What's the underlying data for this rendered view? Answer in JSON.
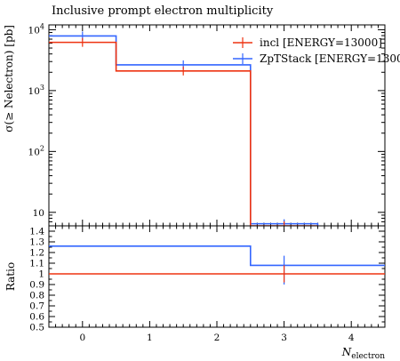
{
  "chart_data": {
    "type": "line",
    "title": "Inclusive prompt electron multiplicity",
    "xlabel": "N_electron",
    "ylabel": "σ(≥ N_electron) [pb]",
    "x_ticks": [
      "0",
      "1",
      "2",
      "3",
      "4"
    ],
    "xlim": [
      -0.5,
      4.5
    ],
    "main_panel": {
      "yscale": "log",
      "ylim": [
        6,
        12000
      ],
      "y_ticks": [
        {
          "value": 10,
          "base": "10",
          "exp": ""
        },
        {
          "value": 100,
          "base": "10",
          "exp": "2"
        },
        {
          "value": 1000,
          "base": "10",
          "exp": "3"
        },
        {
          "value": 10000,
          "base": "10",
          "exp": "4"
        }
      ]
    },
    "ratio_panel": {
      "ylabel": "Ratio",
      "ylim": [
        0.5,
        1.45
      ],
      "y_ticks": [
        "0.5",
        "0.6",
        "0.7",
        "0.8",
        "0.9",
        "1",
        "1.1",
        "1.2",
        "1.3",
        "1.4"
      ]
    },
    "legend_position": "top-right",
    "series": [
      {
        "name": "incl [ENERGY=13000]",
        "color": "#ee3311",
        "bins": [
          {
            "x_low": -0.5,
            "x_high": 0.5,
            "value": 6200
          },
          {
            "x_low": 0.5,
            "x_high": 2.5,
            "value": 2100
          },
          {
            "x_low": 2.5,
            "x_high": 3.5,
            "value": 6.0
          }
        ],
        "ratio": [
          1.0,
          1.0,
          1.0,
          1.0,
          1.0
        ]
      },
      {
        "name": "ZpTStack [ENERGY=1300",
        "color": "#3366ff",
        "bins": [
          {
            "x_low": -0.5,
            "x_high": 0.5,
            "value": 7900
          },
          {
            "x_low": 0.5,
            "x_high": 2.5,
            "value": 2650
          },
          {
            "x_low": 2.5,
            "x_high": 3.5,
            "value": 6.5
          }
        ],
        "ratio": [
          1.26,
          1.26,
          1.26,
          1.08,
          1.08
        ]
      }
    ]
  }
}
